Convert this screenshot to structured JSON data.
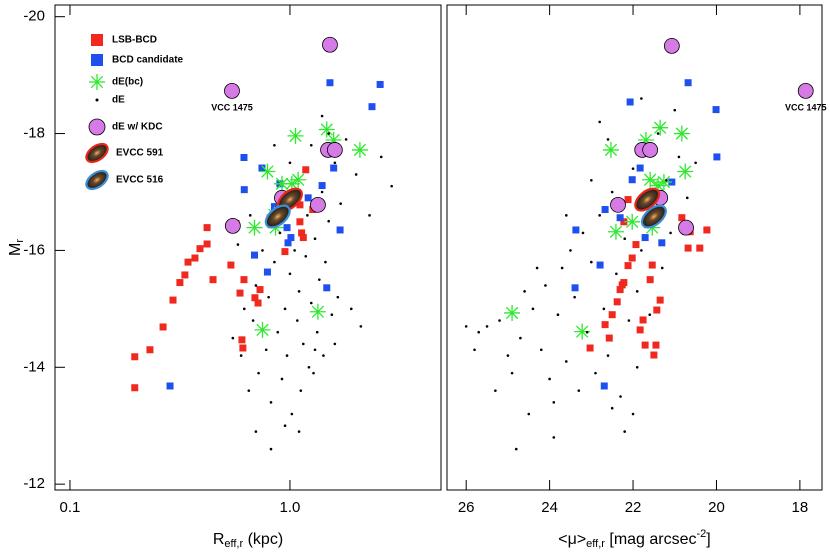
{
  "chart_data": [
    {
      "type": "scatter",
      "log_x": true,
      "xlim": [
        0.0855,
        4.86
      ],
      "ylim": [
        -11.9,
        -20.2
      ],
      "xticks": [
        0.1,
        {
          "value": 1,
          "label": "1.0"
        }
      ],
      "yticks": [
        -20,
        -18,
        -16,
        -14,
        -12
      ],
      "xlabel": {
        "main": "R",
        "sub": "eff,r",
        "rest": " (kpc)"
      },
      "ylabel": {
        "main": "M",
        "sub": "r"
      },
      "annotation": "VCC 1475",
      "series": [
        {
          "name": "LSB-BCD",
          "color": "#f0281e",
          "marker": "square",
          "x": [
            0.197,
            0.197,
            0.231,
            0.265,
            0.294,
            0.316,
            0.333,
            0.344,
            0.37,
            0.39,
            0.42,
            0.447,
            0.42,
            0.539,
            0.593,
            0.618,
            0.693,
            0.716,
            0.611,
            0.605,
            0.731,
            0.569,
            1.11,
            1.13,
            1.15,
            1.27,
            1.11,
            1.18,
            0.949
          ],
          "y": [
            -13.65,
            -14.18,
            -14.3,
            -14.69,
            -15.15,
            -15.45,
            -15.58,
            -15.8,
            -15.87,
            -16.03,
            -16.39,
            -15.5,
            -16.11,
            -15.75,
            -15.27,
            -15.5,
            -15.19,
            -15.1,
            -14.33,
            -14.47,
            -15.33,
            -16.46,
            -16.49,
            -16.3,
            -16.22,
            -16.7,
            -16.78,
            -17.38,
            -15.98
          ]
        },
        {
          "name": "BCD candidate",
          "color": "#1e50f0",
          "marker": "square",
          "x": [
            1.52,
            2.36,
            2.57,
            0.618,
            0.746,
            0.62,
            0.9,
            0.97,
            1.21,
            1.4,
            1.58,
            1.01,
            0.98,
            0.79,
            0.69,
            0.85,
            1.47,
            1.69,
            0.285
          ],
          "y": [
            -18.87,
            -18.46,
            -18.84,
            -17.59,
            -17.41,
            -17.04,
            -17.14,
            -16.39,
            -16.9,
            -17.11,
            -17.41,
            -16.22,
            -16.13,
            -15.63,
            -15.92,
            -16.75,
            -15.36,
            -16.35,
            -13.68
          ]
        },
        {
          "name": "dE(bc)",
          "color": "#2ee82e",
          "marker": "asterisk",
          "x": [
            1.06,
            1.47,
            1.58,
            2.08,
            0.79,
            0.92,
            1.02,
            1.09,
            0.85,
            0.69,
            0.86,
            0.75,
            1.34
          ],
          "y": [
            -17.96,
            -18.07,
            -17.89,
            -17.72,
            -17.35,
            -17.14,
            -17.14,
            -17.21,
            -16.61,
            -16.39,
            -16.39,
            -14.64,
            -14.95
          ]
        },
        {
          "name": "dE",
          "color": "#000000",
          "marker": "dot",
          "x": [
            0.55,
            0.6,
            0.62,
            0.65,
            0.68,
            0.7,
            0.72,
            0.75,
            0.78,
            0.8,
            0.82,
            0.85,
            0.88,
            0.9,
            0.92,
            0.95,
            0.97,
            1.0,
            1.02,
            1.05,
            1.08,
            1.1,
            1.12,
            1.15,
            1.18,
            1.2,
            1.22,
            1.25,
            1.28,
            1.3,
            1.33,
            1.36,
            1.4,
            1.42,
            1.45,
            1.5,
            1.55,
            1.6,
            1.65,
            1.7,
            1.8,
            1.9,
            2.0,
            2.1,
            2.3,
            2.6,
            2.9,
            0.82,
            0.95,
            1.1,
            0.7,
            0.58,
            0.66,
            1.0,
            1.25,
            1.4,
            1.5,
            0.85,
            1.3,
            1.6
          ],
          "y": [
            -14.5,
            -14.2,
            -15.0,
            -13.6,
            -14.8,
            -15.4,
            -13.9,
            -16.0,
            -14.3,
            -15.2,
            -13.4,
            -15.8,
            -14.6,
            -16.3,
            -13.8,
            -15.0,
            -14.2,
            -15.6,
            -13.2,
            -16.0,
            -14.8,
            -15.3,
            -13.6,
            -14.4,
            -15.9,
            -16.6,
            -14.0,
            -15.1,
            -13.9,
            -16.2,
            -14.6,
            -15.5,
            -17.0,
            -14.2,
            -15.8,
            -16.5,
            -14.9,
            -17.5,
            -15.2,
            -16.8,
            -17.9,
            -15.0,
            -17.3,
            -14.7,
            -16.6,
            -17.6,
            -17.1,
            -12.6,
            -13.0,
            -12.9,
            -12.9,
            -16.1,
            -16.6,
            -17.5,
            -17.8,
            -18.3,
            -18.0,
            -17.8,
            -14.3,
            -14.4
          ]
        },
        {
          "name": "dE w/ KDC",
          "color": "#d67ae6",
          "marker": "circle",
          "x": [
            1.52,
            0.545,
            1.49,
            1.6,
            1.34,
            0.92,
            0.55
          ],
          "y": [
            -19.52,
            -18.73,
            -17.72,
            -17.72,
            -16.78,
            -16.9,
            -16.42
          ]
        },
        {
          "name": "EVCC 591",
          "color": "#e8261a",
          "marker": "ellipse",
          "x": [
            1.0
          ],
          "y": [
            -16.87
          ]
        },
        {
          "name": "EVCC 516",
          "color": "#3a8fd8",
          "marker": "ellipse",
          "x": [
            0.88
          ],
          "y": [
            -16.58
          ]
        }
      ]
    },
    {
      "type": "scatter",
      "log_x": false,
      "xlim": [
        26.46,
        17.47
      ],
      "ylim": [
        -11.9,
        -20.2
      ],
      "xticks": [
        26,
        24,
        22,
        20,
        18
      ],
      "xlabel": {
        "main": "<μ>",
        "sub": "eff,r",
        "rest": " [mag arcsec",
        "sup": "-2",
        "end": "]"
      },
      "annotation": "VCC 1475",
      "series": [
        {
          "color": "#f0281e",
          "marker": "square",
          "x": [
            22.67,
            22.57,
            22.5,
            22.38,
            22.31,
            22.26,
            22.22,
            22.12,
            22.02,
            21.93,
            21.83,
            21.76,
            21.71,
            21.59,
            21.54,
            21.5,
            21.45,
            21.43,
            21.35,
            20.83,
            20.68,
            20.63,
            20.4,
            20.23,
            23.03,
            22.22,
            22.12
          ],
          "y": [
            -14.73,
            -14.5,
            -14.9,
            -15.12,
            -15.33,
            -15.41,
            -15.45,
            -15.74,
            -15.87,
            -16.1,
            -14.64,
            -14.81,
            -14.38,
            -15.5,
            -15.75,
            -14.21,
            -14.38,
            -14.98,
            -15.15,
            -16.56,
            -16.04,
            -16.32,
            -16.04,
            -16.35,
            -14.33,
            -16.49,
            -16.87
          ]
        },
        {
          "color": "#1e50f0",
          "marker": "square",
          "x": [
            20.68,
            20.01,
            22.07,
            19.99,
            23.37,
            23.39,
            22.69,
            22.67,
            22.79,
            22.02,
            21.83,
            21.07,
            21.71,
            21.31,
            22.31
          ],
          "y": [
            -18.87,
            -18.41,
            -18.54,
            -17.6,
            -16.35,
            -15.36,
            -13.68,
            -16.7,
            -15.75,
            -17.21,
            -17.41,
            -17.17,
            -16.22,
            -16.13,
            -16.56
          ]
        },
        {
          "color": "#2ee82e",
          "marker": "asterisk",
          "x": [
            20.83,
            21.35,
            21.69,
            22.53,
            20.75,
            21.59,
            21.4,
            21.26,
            22.02,
            22.41,
            21.54,
            23.22,
            24.9
          ],
          "y": [
            -18.0,
            -18.1,
            -17.89,
            -17.72,
            -17.35,
            -17.21,
            -17.11,
            -17.17,
            -16.49,
            -16.32,
            -16.39,
            -14.61,
            -14.93
          ]
        },
        {
          "color": "#000000",
          "marker": "dot",
          "x": [
            25.5,
            25.0,
            25.2,
            24.9,
            25.3,
            24.7,
            24.5,
            24.8,
            24.4,
            24.2,
            24.0,
            24.1,
            23.8,
            23.9,
            23.7,
            23.6,
            23.5,
            23.4,
            23.3,
            23.2,
            23.1,
            23.0,
            22.9,
            22.8,
            22.7,
            22.6,
            22.5,
            22.4,
            22.3,
            22.2,
            22.1,
            22.0,
            21.9,
            21.8,
            21.7,
            21.6,
            21.5,
            21.4,
            21.3,
            21.2,
            21.1,
            21.0,
            20.9,
            20.7,
            20.5,
            22.6,
            23.0,
            23.6,
            24.3,
            22.8,
            21.8,
            22.2,
            22.5,
            21.9,
            26.0,
            25.8,
            23.9,
            24.6,
            25.7,
            22.0
          ],
          "y": [
            -14.7,
            -14.2,
            -14.8,
            -13.9,
            -13.6,
            -14.5,
            -13.2,
            -12.6,
            -15.0,
            -14.3,
            -13.8,
            -15.4,
            -14.9,
            -13.4,
            -15.7,
            -14.1,
            -16.0,
            -15.2,
            -13.6,
            -16.3,
            -14.6,
            -15.8,
            -13.9,
            -16.6,
            -15.0,
            -14.2,
            -17.0,
            -15.6,
            -13.5,
            -16.2,
            -14.8,
            -17.4,
            -15.3,
            -16.0,
            -17.8,
            -14.9,
            -16.6,
            -18.0,
            -15.7,
            -17.2,
            -16.3,
            -18.4,
            -17.6,
            -16.9,
            -17.5,
            -17.9,
            -17.2,
            -16.6,
            -15.7,
            -18.2,
            -18.6,
            -12.9,
            -13.3,
            -14.0,
            -14.7,
            -14.3,
            -12.8,
            -15.3,
            -14.6,
            -13.2
          ]
        },
        {
          "color": "#d67ae6",
          "marker": "circle",
          "x": [
            21.07,
            17.86,
            21.78,
            21.59,
            21.35,
            22.36,
            20.73
          ],
          "y": [
            -19.5,
            -18.73,
            -17.72,
            -17.72,
            -16.9,
            -16.78,
            -16.39
          ]
        },
        {
          "color": "#e8261a",
          "marker": "ellipse",
          "x": [
            21.66
          ],
          "y": [
            -16.87
          ]
        },
        {
          "color": "#3a8fd8",
          "marker": "ellipse",
          "x": [
            21.5
          ],
          "y": [
            -16.58
          ]
        }
      ]
    }
  ]
}
